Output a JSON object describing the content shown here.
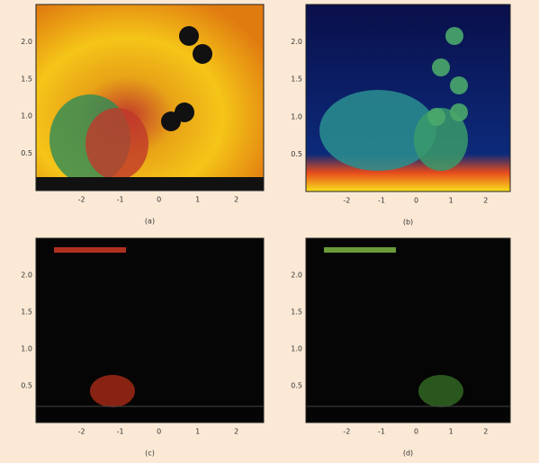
{
  "panels": [
    {
      "label": "(a)",
      "xticks": [
        "-2",
        "-1",
        "0",
        "1",
        "2"
      ],
      "yticks": [
        "0.5",
        "1.0",
        "1.5",
        "2.0"
      ]
    },
    {
      "label": "(b)",
      "xticks": [
        "-2",
        "-1",
        "0",
        "1",
        "2"
      ],
      "yticks": [
        "0.5",
        "1.0",
        "1.5",
        "2.0"
      ]
    },
    {
      "label": "(c)",
      "xticks": [
        "-2",
        "-1",
        "0",
        "1",
        "2"
      ],
      "yticks": [
        "0.5",
        "1.0",
        "1.5",
        "2.0"
      ]
    },
    {
      "label": "(d)",
      "xticks": [
        "-2",
        "-1",
        "0",
        "1",
        "2"
      ],
      "yticks": [
        "0.5",
        "1.0",
        "1.5",
        "2.0"
      ]
    }
  ]
}
